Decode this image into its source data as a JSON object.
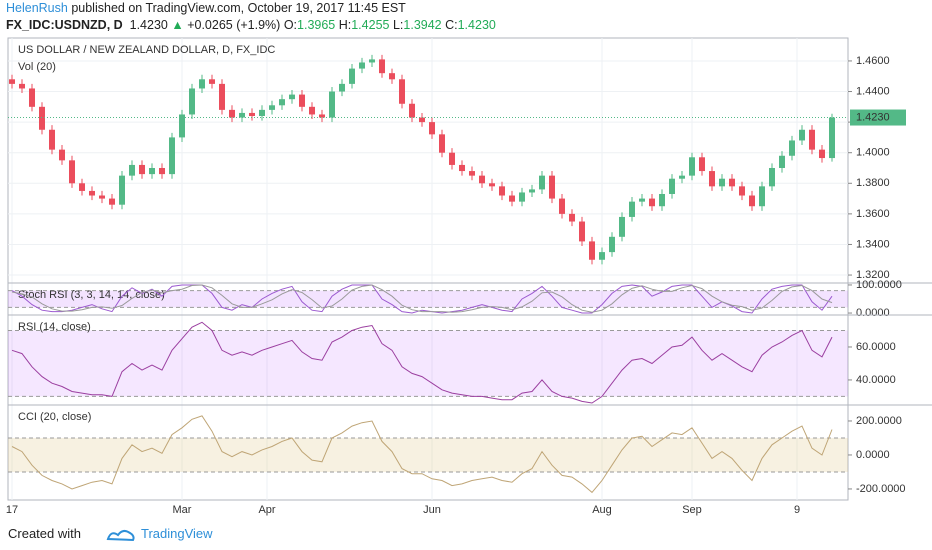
{
  "header": {
    "author": "HelenRush",
    "published": "published on TradingView.com, October 19, 2017 11:45 EST",
    "symbol": "FX_IDC:USDNZD, D",
    "price": "1.4230",
    "change": "+0.0265 (+1.9%)",
    "quote": [
      {
        "label": "O:",
        "value": "1.3965"
      },
      {
        "label": "H:",
        "value": "1.4255"
      },
      {
        "label": "L:",
        "value": "1.3942"
      },
      {
        "label": "C:",
        "value": "1.4230"
      }
    ]
  },
  "footer": {
    "created": "Created with",
    "brand": "TradingView"
  },
  "chart_data": [
    {
      "type": "candlestick",
      "title": "US DOLLAR / NEW ZEALAND DOLLAR, D, FX_IDC",
      "subtitle": "Vol (20)",
      "up_color": "#53b987",
      "down_color": "#eb4d5c",
      "grid": true,
      "last_price": {
        "value": 1.423,
        "label": "1.4230"
      },
      "xlim": [
        -0.4,
        83.6
      ],
      "xticks": [
        {
          "value": 0,
          "label": "17"
        },
        {
          "value": 17,
          "label": "Mar"
        },
        {
          "value": 25.5,
          "label": "Apr"
        },
        {
          "value": 42,
          "label": "Jun"
        },
        {
          "value": 59,
          "label": "Aug"
        },
        {
          "value": 68,
          "label": "Sep"
        },
        {
          "value": 78.5,
          "label": "9"
        }
      ],
      "ylim": [
        1.3148,
        1.475
      ],
      "yticks": [
        {
          "value": 1.32,
          "label": "1.3200"
        },
        {
          "value": 1.34,
          "label": "1.3400"
        },
        {
          "value": 1.36,
          "label": "1.3600"
        },
        {
          "value": 1.38,
          "label": "1.3800"
        },
        {
          "value": 1.4,
          "label": "1.4000"
        },
        {
          "value": 1.42,
          "label": "1.4200"
        },
        {
          "value": 1.44,
          "label": "1.4400"
        },
        {
          "value": 1.46,
          "label": "1.4600"
        }
      ],
      "open": [
        1.448,
        1.445,
        1.442,
        1.43,
        1.415,
        1.402,
        1.395,
        1.38,
        1.375,
        1.372,
        1.37,
        1.366,
        1.385,
        1.392,
        1.386,
        1.39,
        1.386,
        1.41,
        1.425,
        1.442,
        1.448,
        1.445,
        1.428,
        1.423,
        1.426,
        1.424,
        1.428,
        1.431,
        1.435,
        1.438,
        1.43,
        1.425,
        1.423,
        1.44,
        1.445,
        1.455,
        1.459,
        1.461,
        1.452,
        1.448,
        1.432,
        1.423,
        1.42,
        1.412,
        1.4,
        1.392,
        1.388,
        1.385,
        1.38,
        1.378,
        1.372,
        1.368,
        1.374,
        1.376,
        1.385,
        1.37,
        1.36,
        1.355,
        1.342,
        1.33,
        1.335,
        1.345,
        1.358,
        1.368,
        1.37,
        1.365,
        1.373,
        1.383,
        1.385,
        1.397,
        1.388,
        1.378,
        1.383,
        1.378,
        1.372,
        1.365,
        1.378,
        1.39,
        1.398,
        1.408,
        1.415,
        1.402,
        1.3965
      ],
      "high": [
        1.451,
        1.448,
        1.445,
        1.433,
        1.418,
        1.405,
        1.398,
        1.383,
        1.378,
        1.375,
        1.373,
        1.388,
        1.395,
        1.395,
        1.393,
        1.393,
        1.413,
        1.428,
        1.445,
        1.451,
        1.451,
        1.448,
        1.431,
        1.429,
        1.429,
        1.431,
        1.434,
        1.438,
        1.441,
        1.441,
        1.433,
        1.428,
        1.443,
        1.448,
        1.458,
        1.462,
        1.464,
        1.464,
        1.455,
        1.451,
        1.435,
        1.426,
        1.423,
        1.415,
        1.403,
        1.395,
        1.391,
        1.388,
        1.383,
        1.381,
        1.375,
        1.377,
        1.379,
        1.388,
        1.388,
        1.373,
        1.363,
        1.358,
        1.345,
        1.338,
        1.348,
        1.361,
        1.371,
        1.373,
        1.373,
        1.376,
        1.386,
        1.388,
        1.4,
        1.4,
        1.391,
        1.386,
        1.386,
        1.381,
        1.375,
        1.381,
        1.393,
        1.401,
        1.411,
        1.418,
        1.418,
        1.405,
        1.4255
      ],
      "low": [
        1.442,
        1.439,
        1.427,
        1.412,
        1.399,
        1.392,
        1.377,
        1.372,
        1.369,
        1.367,
        1.363,
        1.363,
        1.382,
        1.383,
        1.383,
        1.383,
        1.383,
        1.407,
        1.422,
        1.439,
        1.442,
        1.425,
        1.42,
        1.42,
        1.421,
        1.421,
        1.425,
        1.428,
        1.432,
        1.427,
        1.422,
        1.42,
        1.42,
        1.437,
        1.442,
        1.452,
        1.456,
        1.449,
        1.445,
        1.429,
        1.42,
        1.417,
        1.409,
        1.397,
        1.389,
        1.385,
        1.382,
        1.377,
        1.375,
        1.369,
        1.365,
        1.365,
        1.371,
        1.373,
        1.367,
        1.357,
        1.352,
        1.339,
        1.327,
        1.327,
        1.332,
        1.342,
        1.355,
        1.365,
        1.362,
        1.362,
        1.37,
        1.38,
        1.382,
        1.385,
        1.375,
        1.375,
        1.375,
        1.369,
        1.362,
        1.362,
        1.375,
        1.387,
        1.395,
        1.405,
        1.399,
        1.3935,
        1.3942
      ],
      "close": [
        1.445,
        1.442,
        1.43,
        1.415,
        1.402,
        1.395,
        1.38,
        1.375,
        1.372,
        1.37,
        1.366,
        1.385,
        1.392,
        1.386,
        1.39,
        1.386,
        1.41,
        1.425,
        1.442,
        1.448,
        1.445,
        1.428,
        1.423,
        1.426,
        1.424,
        1.428,
        1.431,
        1.435,
        1.438,
        1.43,
        1.425,
        1.423,
        1.44,
        1.445,
        1.455,
        1.459,
        1.461,
        1.452,
        1.448,
        1.432,
        1.423,
        1.42,
        1.412,
        1.4,
        1.392,
        1.388,
        1.385,
        1.38,
        1.378,
        1.372,
        1.368,
        1.374,
        1.376,
        1.385,
        1.37,
        1.36,
        1.355,
        1.342,
        1.33,
        1.335,
        1.345,
        1.358,
        1.368,
        1.37,
        1.365,
        1.373,
        1.383,
        1.385,
        1.397,
        1.388,
        1.378,
        1.383,
        1.378,
        1.372,
        1.365,
        1.378,
        1.39,
        1.398,
        1.408,
        1.415,
        1.402,
        1.3965,
        1.423
      ]
    },
    {
      "type": "line",
      "title": "Stoch RSI (3, 3, 14, 14, close)",
      "ylim": [
        -7,
        107
      ],
      "yticks": [
        {
          "value": 100,
          "label": "100.0000"
        },
        {
          "value": 0,
          "label": "0.0000"
        }
      ],
      "band": [
        20,
        80
      ],
      "band_color": "rgba(153,21,255,0.12)",
      "series": [
        {
          "color": "#9b59d0",
          "values": [
            80,
            60,
            30,
            10,
            5,
            5,
            10,
            20,
            30,
            15,
            5,
            60,
            90,
            70,
            85,
            60,
            95,
            100,
            100,
            100,
            70,
            20,
            10,
            30,
            20,
            50,
            70,
            85,
            95,
            40,
            10,
            5,
            60,
            85,
            100,
            100,
            100,
            50,
            30,
            5,
            0,
            10,
            5,
            0,
            5,
            10,
            20,
            30,
            20,
            10,
            5,
            50,
            70,
            95,
            60,
            20,
            10,
            0,
            0,
            30,
            70,
            95,
            100,
            95,
            60,
            75,
            95,
            100,
            100,
            60,
            20,
            40,
            25,
            5,
            0,
            50,
            85,
            95,
            100,
            100,
            40,
            10,
            60
          ]
        },
        {
          "color": "#9a9a9a",
          "values": [
            75,
            68,
            57,
            33,
            15,
            7,
            7,
            12,
            20,
            22,
            17,
            27,
            52,
            73,
            82,
            72,
            80,
            85,
            98,
            100,
            90,
            63,
            33,
            20,
            20,
            33,
            47,
            68,
            83,
            73,
            48,
            18,
            25,
            50,
            82,
            95,
            100,
            83,
            60,
            28,
            12,
            5,
            5,
            5,
            3,
            5,
            12,
            20,
            23,
            20,
            12,
            22,
            42,
            72,
            75,
            58,
            30,
            10,
            3,
            10,
            33,
            65,
            88,
            97,
            85,
            77,
            77,
            90,
            98,
            87,
            60,
            40,
            28,
            23,
            10,
            18,
            45,
            77,
            93,
            98,
            80,
            50,
            37
          ]
        }
      ]
    },
    {
      "type": "line",
      "title": "RSI (14, close)",
      "ylim": [
        24.8,
        79.4
      ],
      "yticks": [
        {
          "value": 60,
          "label": "60.0000"
        },
        {
          "value": 40,
          "label": "40.0000"
        }
      ],
      "band": [
        30,
        70
      ],
      "band_color": "rgba(153,21,255,0.1)",
      "series": [
        {
          "color": "#9b3fa0",
          "values": [
            58,
            56,
            48,
            42,
            38,
            36,
            33,
            32,
            31,
            31,
            30,
            45,
            50,
            46,
            49,
            46,
            58,
            65,
            72,
            75,
            70,
            58,
            55,
            57,
            55,
            58,
            60,
            62,
            64,
            57,
            53,
            52,
            63,
            66,
            70,
            72,
            73,
            62,
            58,
            48,
            44,
            42,
            38,
            34,
            32,
            31,
            30,
            30,
            29,
            28,
            28,
            32,
            33,
            40,
            33,
            30,
            29,
            27,
            26,
            30,
            38,
            46,
            52,
            53,
            50,
            55,
            60,
            61,
            66,
            58,
            52,
            56,
            52,
            48,
            45,
            55,
            60,
            63,
            67,
            70,
            58,
            54,
            66
          ]
        }
      ]
    },
    {
      "type": "line",
      "title": "CCI (20, close)",
      "ylim": [
        -265,
        294
      ],
      "yticks": [
        {
          "value": 200,
          "label": "200.0000"
        },
        {
          "value": 0,
          "label": "0.0000"
        },
        {
          "value": -200,
          "label": "-200.0000"
        }
      ],
      "band": [
        -100,
        100
      ],
      "band_color": "rgba(220,190,120,0.22)",
      "series": [
        {
          "color": "#bfa576",
          "values": [
            50,
            20,
            -60,
            -120,
            -150,
            -170,
            -200,
            -180,
            -160,
            -150,
            -170,
            -20,
            60,
            20,
            40,
            10,
            120,
            160,
            210,
            230,
            140,
            20,
            -10,
            20,
            0,
            30,
            50,
            80,
            100,
            20,
            -30,
            -40,
            100,
            130,
            170,
            190,
            200,
            80,
            20,
            -80,
            -110,
            -110,
            -140,
            -150,
            -180,
            -170,
            -150,
            -140,
            -130,
            -150,
            -160,
            -110,
            -80,
            20,
            -60,
            -120,
            -130,
            -170,
            -220,
            -150,
            -60,
            30,
            100,
            110,
            50,
            90,
            130,
            120,
            160,
            70,
            -20,
            20,
            -20,
            -90,
            -150,
            -20,
            60,
            100,
            140,
            170,
            40,
            0,
            150
          ]
        }
      ]
    }
  ]
}
